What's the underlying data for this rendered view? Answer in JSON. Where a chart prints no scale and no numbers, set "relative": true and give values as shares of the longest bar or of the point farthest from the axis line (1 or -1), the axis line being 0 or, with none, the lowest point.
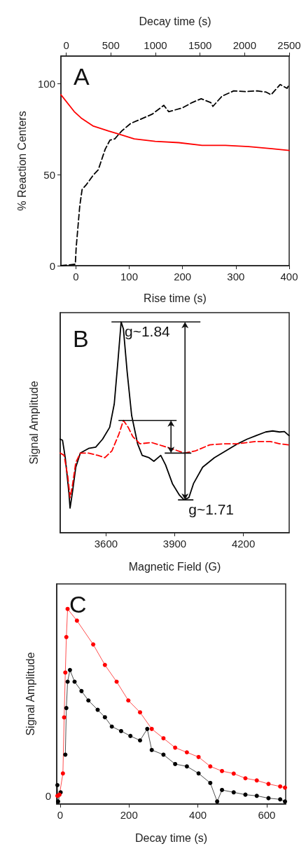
{
  "chart_data": [
    {
      "type": "line",
      "xlabel": "Rise time (s)",
      "x2label": "Decay time (s)",
      "ylabel": "% Reaction Centers",
      "annotations": [
        "A"
      ],
      "xlim": [
        -28,
        400
      ],
      "xticks": [
        0,
        100,
        200,
        300,
        400
      ],
      "x2lim": [
        -60,
        2500
      ],
      "x2ticks": [
        0,
        500,
        1000,
        1500,
        2000,
        2500
      ],
      "ylim": [
        0,
        115
      ],
      "yticks": [
        0,
        50,
        100
      ],
      "marker": "none",
      "series": [
        {
          "color": "#ff0000",
          "axis": "x2",
          "line_style": "solid",
          "x": [
            -60,
            90,
            168,
            298,
            474,
            605,
            762,
            997,
            1262,
            1523,
            1784,
            2045,
            2306,
            2500
          ],
          "values": [
            93.8,
            84.5,
            81,
            76.7,
            73.9,
            72,
            69.6,
            68.2,
            67.5,
            66,
            66,
            65.3,
            64.2,
            63.2
          ]
        },
        {
          "color": "#000000",
          "line_style": "dashed",
          "x": [
            -28,
            -1,
            0.6,
            7.3,
            11.7,
            20,
            33,
            42,
            55,
            64,
            73,
            86,
            103,
            121,
            143,
            165,
            174,
            200,
            218,
            235,
            253,
            257,
            274,
            296,
            318,
            340,
            357,
            366,
            383,
            396,
            400
          ],
          "values": [
            0,
            0.8,
            9.9,
            32.7,
            41.8,
            44.6,
            49.8,
            52.6,
            63.9,
            68.9,
            69.6,
            73.9,
            78.1,
            80.3,
            83.1,
            88,
            84.5,
            86.6,
            89.5,
            91.6,
            89.5,
            87.4,
            93,
            95.9,
            95.5,
            95.9,
            95.2,
            93.8,
            99.4,
            97.3,
            99.4
          ]
        }
      ]
    },
    {
      "type": "line",
      "xlabel": "Magnetic Field (G)",
      "ylabel": "Signal Amplitude",
      "relative": true,
      "marker": "none",
      "annotations": [
        "B",
        {
          "text": "g~1.84",
          "x": 3666,
          "y": 1.0
        },
        {
          "text": "g~1.71",
          "x": 3945,
          "y": 0.156
        }
      ],
      "xlim": [
        3400,
        4400
      ],
      "xticks": [
        3600,
        3900,
        4200
      ],
      "series": [
        {
          "color": "#000000",
          "line_style": "solid",
          "x": [
            3400,
            3410,
            3422,
            3438,
            3443,
            3453,
            3468,
            3488,
            3524,
            3555,
            3585,
            3616,
            3636,
            3651,
            3666,
            3676,
            3692,
            3712,
            3738,
            3758,
            3788,
            3809,
            3839,
            3860,
            3890,
            3921,
            3941,
            3962,
            3982,
            4022,
            4073,
            4124,
            4175,
            4216,
            4256,
            4297,
            4328,
            4358,
            4379,
            4399
          ],
          "values": [
            0.444,
            0.439,
            0.356,
            0.189,
            0.117,
            0.189,
            0.311,
            0.378,
            0.4,
            0.406,
            0.444,
            0.5,
            0.611,
            0.8,
            1.0,
            0.967,
            0.767,
            0.556,
            0.422,
            0.367,
            0.356,
            0.339,
            0.367,
            0.322,
            0.233,
            0.178,
            0.156,
            0.167,
            0.233,
            0.311,
            0.356,
            0.389,
            0.422,
            0.444,
            0.461,
            0.478,
            0.483,
            0.478,
            0.48,
            0.461
          ]
        },
        {
          "color": "#ff0000",
          "line_style": "dashed",
          "x": [
            3400,
            3417,
            3433,
            3443,
            3453,
            3468,
            3488,
            3524,
            3565,
            3595,
            3626,
            3656,
            3676,
            3697,
            3717,
            3748,
            3799,
            3850,
            3900,
            3941,
            3992,
            4053,
            4114,
            4175,
            4256,
            4317,
            4358,
            4399
          ],
          "values": [
            0.378,
            0.367,
            0.267,
            0.167,
            0.222,
            0.333,
            0.378,
            0.378,
            0.367,
            0.356,
            0.389,
            0.467,
            0.533,
            0.5,
            0.456,
            0.422,
            0.428,
            0.411,
            0.394,
            0.378,
            0.389,
            0.417,
            0.422,
            0.422,
            0.433,
            0.433,
            0.422,
            0.417
          ]
        }
      ]
    },
    {
      "type": "line",
      "xlabel": "Decay time (s)",
      "ylabel": "Signal Amplitude",
      "relative": true,
      "marker": "circle",
      "line_style": "solid",
      "annotations": [
        "C",
        "0"
      ],
      "xlim": [
        -10,
        655
      ],
      "xticks": [
        0,
        200,
        400,
        600
      ],
      "series": [
        {
          "color": "#000000",
          "x": [
            -8,
            -6,
            1.4,
            11.5,
            15,
            18,
            21.6,
            28.4,
            41.9,
            62,
            82,
            109,
            130,
            150,
            177,
            204,
            232,
            253,
            266,
            300,
            334,
            368,
            402,
            436,
            456,
            470,
            504,
            538,
            571,
            605,
            639,
            653
          ],
          "values": [
            0.097,
            0.013,
            0.06,
            null,
            0.253,
            0.492,
            0.627,
            0.687,
            0.627,
            0.579,
            0.531,
            0.483,
            0.445,
            0.397,
            0.374,
            0.349,
            0.326,
            0.385,
            0.277,
            0.253,
            0.205,
            0.193,
            0.157,
            0.108,
            0.013,
            0.072,
            0.06,
            0.048,
            0.042,
            0.03,
            0.024,
            0.013
          ]
        },
        {
          "color": "#ff0000",
          "x": [
            -8,
            -2,
            8,
            11.5,
            15,
            18,
            21.6,
            48.7,
            96,
            130,
            164,
            198,
            232,
            266,
            300,
            334,
            368,
            402,
            436,
            470,
            504,
            538,
            571,
            605,
            639,
            653
          ],
          "values": [
            0.042,
            0.048,
            0.157,
            0.444,
            0.674,
            0.856,
            1.0,
            0.94,
            0.818,
            0.713,
            0.627,
            0.531,
            0.47,
            0.385,
            0.337,
            0.289,
            0.265,
            0.241,
            0.193,
            0.169,
            0.156,
            0.132,
            0.121,
            0.103,
            0.09,
            0.084
          ]
        }
      ]
    }
  ]
}
